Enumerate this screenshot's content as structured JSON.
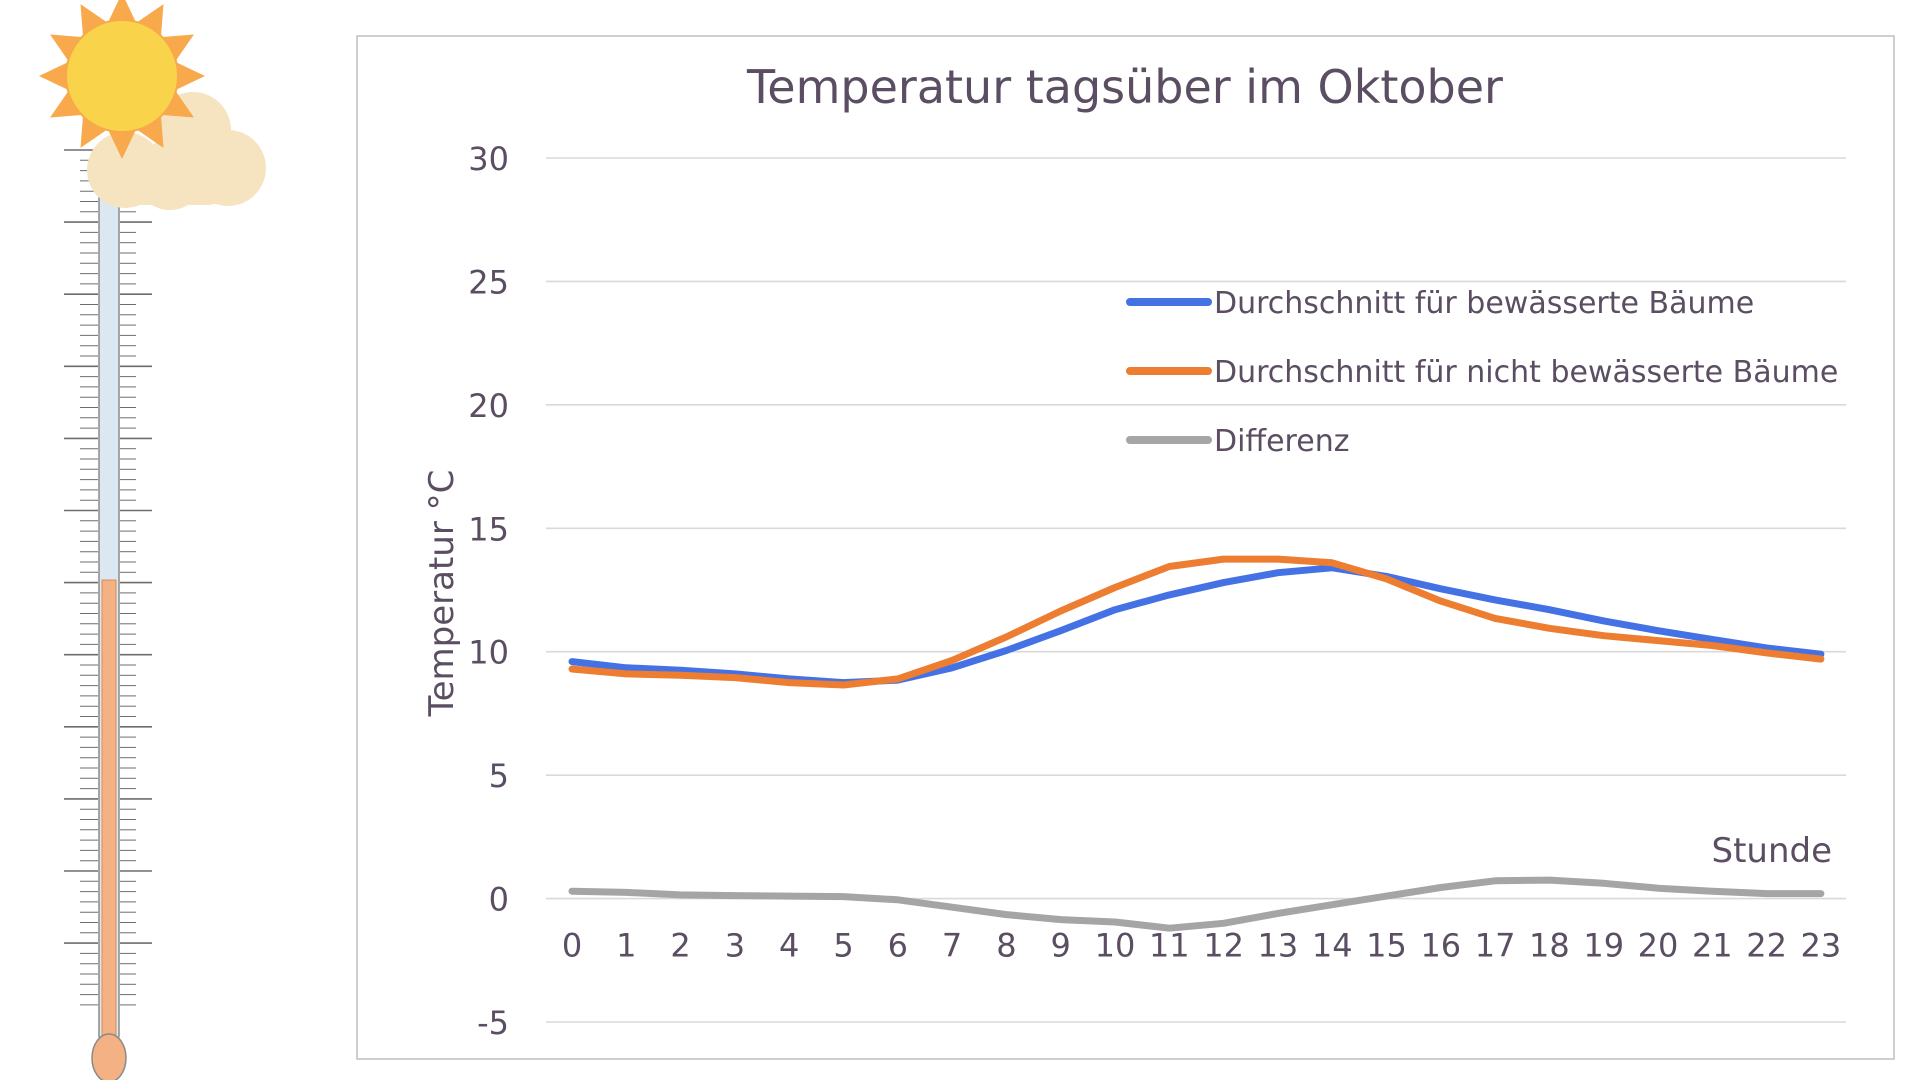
{
  "chart_data": {
    "type": "line",
    "title": "Temperatur tagsüber im Oktober",
    "xlabel": "Stunde",
    "ylabel": "Temperatur °C",
    "ylim": [
      -5,
      30
    ],
    "yticks": [
      "-5",
      "0",
      "5",
      "10",
      "15",
      "20",
      "25",
      "30"
    ],
    "categories": [
      "0",
      "1",
      "2",
      "3",
      "4",
      "5",
      "6",
      "7",
      "8",
      "9",
      "10",
      "11",
      "12",
      "13",
      "14",
      "15",
      "16",
      "17",
      "18",
      "19",
      "20",
      "21",
      "22",
      "23"
    ],
    "grid": true,
    "legend_position": "top-right",
    "series": [
      {
        "name": "Durchschnitt für bewässerte Bäume",
        "color": "#4472e4",
        "values": [
          9.6,
          9.35,
          9.25,
          9.1,
          8.9,
          8.75,
          8.85,
          9.35,
          10.05,
          10.85,
          11.7,
          12.3,
          12.8,
          13.2,
          13.4,
          13.05,
          12.55,
          12.1,
          11.7,
          11.25,
          10.85,
          10.5,
          10.15,
          9.9
        ]
      },
      {
        "name": "Durchschnitt für nicht bewässerte Bäume",
        "color": "#ed7d31",
        "values": [
          9.3,
          9.1,
          9.05,
          8.95,
          8.75,
          8.65,
          8.9,
          9.65,
          10.6,
          11.65,
          12.6,
          13.45,
          13.75,
          13.75,
          13.6,
          12.95,
          12.05,
          11.35,
          10.95,
          10.65,
          10.45,
          10.25,
          9.95,
          9.7
        ]
      },
      {
        "name": "Differenz",
        "color": "#a5a5a5",
        "values": [
          0.3,
          0.25,
          0.15,
          0.12,
          0.1,
          0.08,
          -0.05,
          -0.35,
          -0.65,
          -0.85,
          -0.95,
          -1.2,
          -1.0,
          -0.6,
          -0.25,
          0.1,
          0.45,
          0.72,
          0.75,
          0.62,
          0.42,
          0.3,
          0.2,
          0.2
        ]
      }
    ]
  },
  "colors": {
    "text": "#5b4e63",
    "grid": "#d9d9d9",
    "frame": "#bfbfbf",
    "sun": "#f9d44a",
    "sun_rays": "#f7a94b",
    "cloud": "#f6e4c0",
    "thermo_liquid": "#f4b183",
    "thermo_glass": "#dbe8f2"
  },
  "icons": {
    "thermometer": "thermometer-icon",
    "sun": "sun-icon",
    "cloud": "cloud-icon"
  }
}
